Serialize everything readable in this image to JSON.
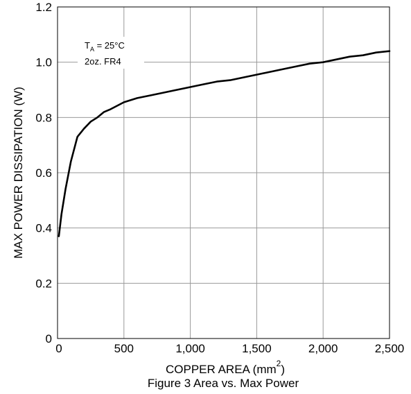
{
  "chart_data": {
    "type": "line",
    "title": "Figure 3 Area vs. Max Power",
    "xlabel": "COPPER AREA (mm",
    "xlabel_superscript": "2",
    "xlabel_suffix": ")",
    "ylabel": "MAX POWER DISSIPATION (W)",
    "xlim": [
      0,
      2500
    ],
    "ylim": [
      0,
      1.2
    ],
    "x_ticks": [
      {
        "value": 0,
        "label": "0"
      },
      {
        "value": 500,
        "label": "500"
      },
      {
        "value": 1000,
        "label": "1,000"
      },
      {
        "value": 1500,
        "label": "1,500"
      },
      {
        "value": 2000,
        "label": "2,000"
      },
      {
        "value": 2500,
        "label": "2,500"
      }
    ],
    "y_ticks": [
      {
        "value": 0,
        "label": "0"
      },
      {
        "value": 0.2,
        "label": "0.2"
      },
      {
        "value": 0.4,
        "label": "0.4"
      },
      {
        "value": 0.6,
        "label": "0.6"
      },
      {
        "value": 0.8,
        "label": "0.8"
      },
      {
        "value": 1.0,
        "label": "1.0"
      },
      {
        "value": 1.2,
        "label": "1.2"
      }
    ],
    "grid": true,
    "annotation": {
      "line1_main": "T",
      "line1_sub": "A",
      "line1_rest": " = 25°C",
      "line2": "2oz. FR4"
    },
    "series": [
      {
        "x": [
          10,
          30,
          60,
          100,
          150,
          200,
          250,
          300,
          350,
          400,
          500,
          600,
          700,
          800,
          900,
          1000,
          1100,
          1200,
          1300,
          1400,
          1500,
          1600,
          1700,
          1800,
          1900,
          2000,
          2100,
          2200,
          2300,
          2400,
          2500
        ],
        "y": [
          0.37,
          0.45,
          0.54,
          0.64,
          0.73,
          0.76,
          0.785,
          0.8,
          0.82,
          0.83,
          0.855,
          0.87,
          0.88,
          0.89,
          0.9,
          0.91,
          0.92,
          0.93,
          0.935,
          0.945,
          0.955,
          0.965,
          0.975,
          0.985,
          0.995,
          1.0,
          1.01,
          1.02,
          1.025,
          1.035,
          1.04
        ]
      }
    ],
    "colors": {
      "line": "#000000",
      "grid": "#999999",
      "frame": "#000000"
    }
  }
}
